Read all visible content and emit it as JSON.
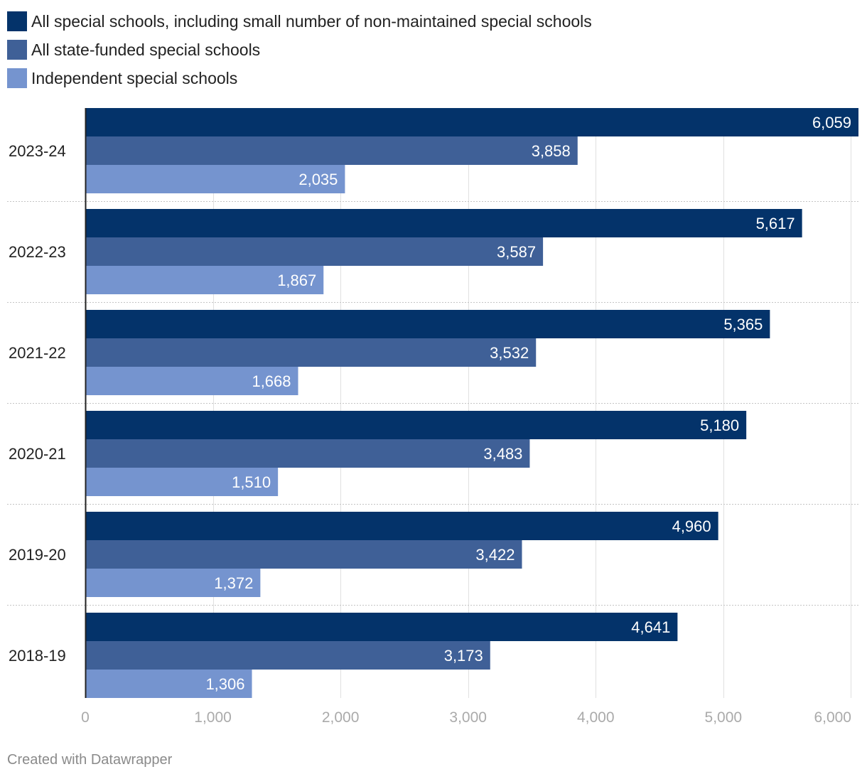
{
  "chart_data": {
    "type": "bar",
    "orientation": "horizontal",
    "categories": [
      "2023-24",
      "2022-23",
      "2021-22",
      "2020-21",
      "2019-20",
      "2018-19"
    ],
    "series": [
      {
        "name": "All special schools, including small number of non-maintained special schools",
        "color": "#04336a",
        "values": [
          6059,
          5617,
          5365,
          5180,
          4960,
          4641
        ],
        "labels": [
          "6,059",
          "5,617",
          "5,365",
          "5,180",
          "4,960",
          "4,641"
        ]
      },
      {
        "name": "All state-funded special schools",
        "color": "#3f6097",
        "values": [
          3858,
          3587,
          3532,
          3483,
          3422,
          3173
        ],
        "labels": [
          "3,858",
          "3,587",
          "3,532",
          "3,483",
          "3,422",
          "3,173"
        ]
      },
      {
        "name": "Independent special schools",
        "color": "#7594cf",
        "values": [
          2035,
          1867,
          1668,
          1510,
          1372,
          1306
        ],
        "labels": [
          "2,035",
          "1,867",
          "1,668",
          "1,510",
          "1,372",
          "1,306"
        ]
      }
    ],
    "x_ticks": [
      0,
      1000,
      2000,
      3000,
      4000,
      5000,
      6000
    ],
    "x_tick_labels": [
      "0",
      "1,000",
      "2,000",
      "3,000",
      "4,000",
      "5,000",
      "6,000"
    ],
    "xlim": [
      0,
      6059
    ],
    "grid": true,
    "legend_position": "top-left",
    "title": "",
    "xlabel": "",
    "ylabel": ""
  },
  "footer": {
    "credit": "Created with Datawrapper"
  }
}
